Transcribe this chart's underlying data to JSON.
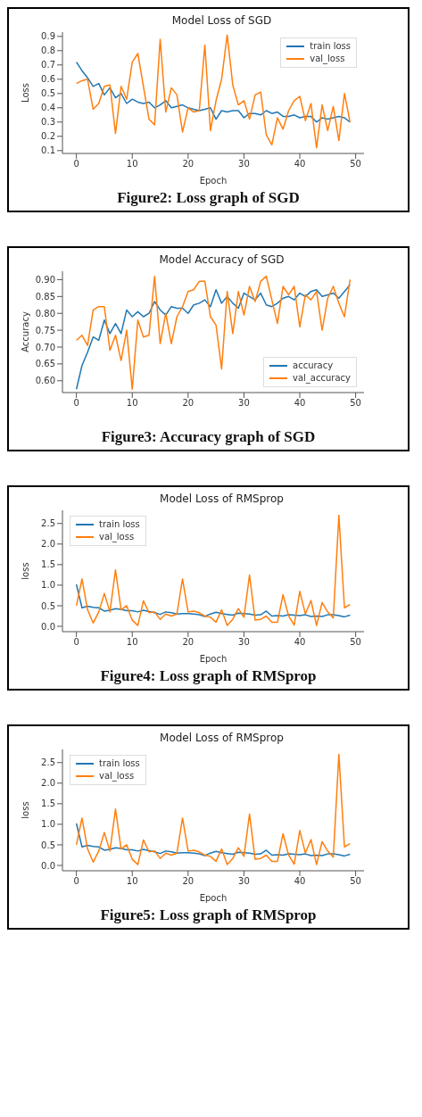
{
  "chart_data": [
    {
      "type": "line",
      "title": "Model Loss of SGD",
      "xlabel": "Epoch",
      "ylabel": "Loss",
      "legend": "top right",
      "annotations": [
        "Figure2: Loss graph of SGD"
      ],
      "x": [
        0,
        1,
        2,
        3,
        4,
        5,
        6,
        7,
        8,
        9,
        10,
        11,
        12,
        13,
        14,
        15,
        16,
        17,
        18,
        19,
        20,
        21,
        22,
        23,
        24,
        25,
        26,
        27,
        28,
        29,
        30,
        31,
        32,
        33,
        34,
        35,
        36,
        37,
        38,
        39,
        40,
        41,
        42,
        43,
        44,
        45,
        46,
        47,
        48,
        49
      ],
      "xlim": [
        -2.5,
        51.5
      ],
      "xticks": [
        0,
        10,
        20,
        30,
        40,
        50
      ],
      "ylim": [
        0.08,
        0.93
      ],
      "yticks": [
        0.1,
        0.2,
        0.3,
        0.4,
        0.5,
        0.6,
        0.7,
        0.8,
        0.9
      ],
      "series": [
        {
          "name": "train loss",
          "color": "#1f77b4",
          "values": [
            0.72,
            0.66,
            0.61,
            0.55,
            0.57,
            0.49,
            0.54,
            0.47,
            0.5,
            0.43,
            0.46,
            0.44,
            0.43,
            0.44,
            0.4,
            0.42,
            0.45,
            0.4,
            0.41,
            0.42,
            0.4,
            0.39,
            0.38,
            0.39,
            0.4,
            0.32,
            0.38,
            0.37,
            0.38,
            0.38,
            0.33,
            0.36,
            0.36,
            0.35,
            0.38,
            0.36,
            0.37,
            0.34,
            0.34,
            0.35,
            0.33,
            0.34,
            0.34,
            0.3,
            0.33,
            0.32,
            0.33,
            0.34,
            0.33,
            0.3
          ]
        },
        {
          "name": "val_loss",
          "color": "#ff7f0e",
          "values": [
            0.57,
            0.59,
            0.6,
            0.39,
            0.43,
            0.55,
            0.56,
            0.22,
            0.55,
            0.46,
            0.72,
            0.78,
            0.55,
            0.32,
            0.28,
            0.88,
            0.37,
            0.54,
            0.49,
            0.23,
            0.4,
            0.37,
            0.38,
            0.84,
            0.24,
            0.45,
            0.6,
            0.91,
            0.56,
            0.42,
            0.45,
            0.32,
            0.49,
            0.51,
            0.21,
            0.14,
            0.33,
            0.25,
            0.38,
            0.45,
            0.48,
            0.31,
            0.43,
            0.12,
            0.42,
            0.24,
            0.41,
            0.17,
            0.5,
            0.3
          ]
        }
      ]
    },
    {
      "type": "line",
      "title": "Model Accuracy of SGD",
      "ylabel": "Accuracy",
      "legend": "bottom right",
      "annotations": [
        "Figure3: Accuracy graph of SGD"
      ],
      "x": [
        0,
        1,
        2,
        3,
        4,
        5,
        6,
        7,
        8,
        9,
        10,
        11,
        12,
        13,
        14,
        15,
        16,
        17,
        18,
        19,
        20,
        21,
        22,
        23,
        24,
        25,
        26,
        27,
        28,
        29,
        30,
        31,
        32,
        33,
        34,
        35,
        36,
        37,
        38,
        39,
        40,
        41,
        42,
        43,
        44,
        45,
        46,
        47,
        48,
        49
      ],
      "xlim": [
        -2.5,
        51.5
      ],
      "xticks": [
        0,
        10,
        20,
        30,
        40,
        50
      ],
      "ylim": [
        0.565,
        0.925
      ],
      "yticks": [
        {
          "value": 0.6,
          "label": "0.60"
        },
        0.65,
        {
          "value": 0.7,
          "label": "0.70"
        },
        0.75,
        {
          "value": 0.8,
          "label": "0.80"
        },
        0.85,
        {
          "value": 0.9,
          "label": "0.90"
        }
      ],
      "series": [
        {
          "name": "accuracy",
          "color": "#1f77b4",
          "values": [
            0.575,
            0.645,
            0.685,
            0.73,
            0.72,
            0.78,
            0.74,
            0.77,
            0.74,
            0.81,
            0.79,
            0.805,
            0.79,
            0.8,
            0.835,
            0.81,
            0.795,
            0.82,
            0.815,
            0.815,
            0.8,
            0.825,
            0.83,
            0.84,
            0.82,
            0.87,
            0.83,
            0.85,
            0.83,
            0.815,
            0.86,
            0.85,
            0.84,
            0.86,
            0.825,
            0.82,
            0.83,
            0.845,
            0.85,
            0.84,
            0.86,
            0.85,
            0.865,
            0.87,
            0.85,
            0.855,
            0.86,
            0.845,
            0.865,
            0.885
          ]
        },
        {
          "name": "val_accuracy",
          "color": "#ff7f0e",
          "values": [
            0.72,
            0.735,
            0.705,
            0.81,
            0.82,
            0.82,
            0.69,
            0.735,
            0.66,
            0.75,
            0.575,
            0.78,
            0.73,
            0.735,
            0.91,
            0.71,
            0.8,
            0.71,
            0.79,
            0.82,
            0.865,
            0.87,
            0.895,
            0.895,
            0.79,
            0.765,
            0.635,
            0.865,
            0.74,
            0.865,
            0.795,
            0.88,
            0.835,
            0.895,
            0.91,
            0.84,
            0.77,
            0.88,
            0.855,
            0.88,
            0.76,
            0.855,
            0.84,
            0.865,
            0.75,
            0.845,
            0.88,
            0.83,
            0.79,
            0.9
          ]
        }
      ]
    },
    {
      "type": "line",
      "title": "Model Loss of RMSprop",
      "xlabel": "Epoch",
      "ylabel": "loss",
      "legend": "top left",
      "annotations": [
        "Figure4: Loss graph of RMSprop"
      ],
      "x": [
        0,
        1,
        2,
        3,
        4,
        5,
        6,
        7,
        8,
        9,
        10,
        11,
        12,
        13,
        14,
        15,
        16,
        17,
        18,
        19,
        20,
        21,
        22,
        23,
        24,
        25,
        26,
        27,
        28,
        29,
        30,
        31,
        32,
        33,
        34,
        35,
        36,
        37,
        38,
        39,
        40,
        41,
        42,
        43,
        44,
        45,
        46,
        47,
        48,
        49
      ],
      "xlim": [
        -2.5,
        51.5
      ],
      "xticks": [
        0,
        10,
        20,
        30,
        40,
        50
      ],
      "ylim": [
        -0.13,
        2.82
      ],
      "yticks": [
        {
          "value": 0,
          "label": "0.0"
        },
        0.5,
        {
          "value": 1,
          "label": "1.0"
        },
        1.5,
        {
          "value": 2,
          "label": "2.0"
        },
        2.5
      ],
      "series": [
        {
          "name": "train loss",
          "color": "#1f77b4",
          "values": [
            1.02,
            0.45,
            0.49,
            0.46,
            0.45,
            0.37,
            0.39,
            0.43,
            0.41,
            0.38,
            0.38,
            0.35,
            0.39,
            0.36,
            0.33,
            0.29,
            0.35,
            0.33,
            0.3,
            0.31,
            0.31,
            0.3,
            0.28,
            0.24,
            0.3,
            0.34,
            0.31,
            0.29,
            0.27,
            0.32,
            0.31,
            0.3,
            0.27,
            0.28,
            0.37,
            0.25,
            0.26,
            0.25,
            0.28,
            0.27,
            0.26,
            0.28,
            0.24,
            0.25,
            0.24,
            0.28,
            0.28,
            0.26,
            0.23,
            0.27
          ]
        },
        {
          "name": "val_loss",
          "color": "#ff7f0e",
          "values": [
            0.5,
            1.15,
            0.4,
            0.08,
            0.35,
            0.8,
            0.35,
            1.37,
            0.4,
            0.5,
            0.15,
            0.02,
            0.62,
            0.33,
            0.35,
            0.17,
            0.3,
            0.25,
            0.3,
            1.15,
            0.35,
            0.37,
            0.33,
            0.25,
            0.22,
            0.1,
            0.4,
            0.02,
            0.17,
            0.43,
            0.22,
            1.25,
            0.15,
            0.17,
            0.25,
            0.1,
            0.1,
            0.77,
            0.25,
            0.03,
            0.85,
            0.3,
            0.63,
            0.02,
            0.58,
            0.35,
            0.2,
            2.7,
            0.45,
            0.53
          ]
        }
      ]
    },
    {
      "type": "line",
      "title": "Model Loss of RMSprop",
      "xlabel": "Epoch",
      "ylabel": "loss",
      "legend": "top left",
      "annotations": [
        "Figure5: Loss graph of RMSprop"
      ],
      "x": [
        0,
        1,
        2,
        3,
        4,
        5,
        6,
        7,
        8,
        9,
        10,
        11,
        12,
        13,
        14,
        15,
        16,
        17,
        18,
        19,
        20,
        21,
        22,
        23,
        24,
        25,
        26,
        27,
        28,
        29,
        30,
        31,
        32,
        33,
        34,
        35,
        36,
        37,
        38,
        39,
        40,
        41,
        42,
        43,
        44,
        45,
        46,
        47,
        48,
        49
      ],
      "xlim": [
        -2.5,
        51.5
      ],
      "xticks": [
        0,
        10,
        20,
        30,
        40,
        50
      ],
      "ylim": [
        -0.13,
        2.82
      ],
      "yticks": [
        {
          "value": 0,
          "label": "0.0"
        },
        0.5,
        {
          "value": 1,
          "label": "1.0"
        },
        1.5,
        {
          "value": 2,
          "label": "2.0"
        },
        2.5
      ],
      "series": [
        {
          "name": "train loss",
          "color": "#1f77b4",
          "values": [
            1.02,
            0.45,
            0.49,
            0.46,
            0.45,
            0.37,
            0.39,
            0.43,
            0.41,
            0.38,
            0.38,
            0.35,
            0.39,
            0.36,
            0.33,
            0.29,
            0.35,
            0.33,
            0.3,
            0.31,
            0.31,
            0.3,
            0.28,
            0.24,
            0.3,
            0.34,
            0.31,
            0.29,
            0.27,
            0.32,
            0.31,
            0.3,
            0.27,
            0.28,
            0.37,
            0.25,
            0.26,
            0.25,
            0.28,
            0.27,
            0.26,
            0.28,
            0.24,
            0.25,
            0.24,
            0.28,
            0.28,
            0.26,
            0.23,
            0.27
          ]
        },
        {
          "name": "val_loss",
          "color": "#ff7f0e",
          "values": [
            0.5,
            1.15,
            0.4,
            0.08,
            0.35,
            0.8,
            0.35,
            1.37,
            0.4,
            0.5,
            0.15,
            0.02,
            0.62,
            0.33,
            0.35,
            0.17,
            0.3,
            0.25,
            0.3,
            1.15,
            0.35,
            0.37,
            0.33,
            0.25,
            0.22,
            0.1,
            0.4,
            0.02,
            0.17,
            0.43,
            0.22,
            1.25,
            0.15,
            0.17,
            0.25,
            0.1,
            0.1,
            0.77,
            0.25,
            0.03,
            0.85,
            0.3,
            0.63,
            0.02,
            0.58,
            0.35,
            0.2,
            2.7,
            0.45,
            0.53
          ]
        }
      ]
    }
  ]
}
